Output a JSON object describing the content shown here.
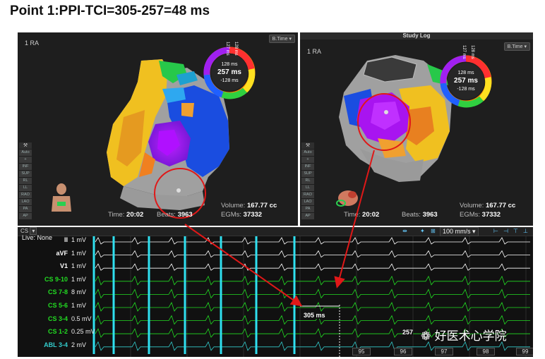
{
  "title": "Point 1:PPI-TCI=305-257=48 ms",
  "left_map": {
    "label": "1 RA",
    "dropdown": "B.Time",
    "ring_top": "128 ms",
    "ring_mid": "257 ms",
    "ring_bottom": "-128 ms",
    "ring_side_a": "127 ms",
    "ring_side_b": "128 ms",
    "time_label": "Time:",
    "time_value": "20:02",
    "beats_label": "Beats:",
    "beats_value": "3963",
    "volume_label": "Volume:",
    "volume_value": "167.77 cc",
    "egms_label": "EGMs:",
    "egms_value": "37332"
  },
  "right_map": {
    "header": "Study Log",
    "label": "1 RA",
    "dropdown": "B.Time",
    "ring_top": "128 ms",
    "ring_mid": "257 ms",
    "ring_bottom": "-128 ms",
    "ring_side_a": "127 ms",
    "ring_side_b": "128 ms",
    "time_label": "Time:",
    "time_value": "20:02",
    "beats_label": "Beats:",
    "beats_value": "3963",
    "volume_label": "Volume:",
    "volume_value": "167.77 cc",
    "egms_label": "EGMs:",
    "egms_value": "37332"
  },
  "toolbar": [
    "Auto",
    "+",
    "INF",
    "SUP",
    "RL",
    "LL",
    "RAO",
    "LAO",
    "PA",
    "AP"
  ],
  "egm": {
    "selector": "CS",
    "speed": "100 mm/s",
    "channels": [
      {
        "name": "II",
        "gain": "1 mV",
        "color": "#ffffff"
      },
      {
        "name": "aVF",
        "gain": "1 mV",
        "color": "#ffffff"
      },
      {
        "name": "V1",
        "gain": "1 mV",
        "color": "#ffffff"
      },
      {
        "name": "CS 9-10",
        "gain": "1 mV",
        "color": "#22dd22"
      },
      {
        "name": "CS 7-8",
        "gain": "8 mV",
        "color": "#22dd22"
      },
      {
        "name": "CS 5-6",
        "gain": "1 mV",
        "color": "#22dd22"
      },
      {
        "name": "CS 3-4",
        "gain": "0.5 mV",
        "color": "#22dd22"
      },
      {
        "name": "CS 1-2",
        "gain": "0.25 mV",
        "color": "#22dd22"
      },
      {
        "name": "ABL 3-4",
        "gain": "2 mV",
        "color": "#33cccc"
      }
    ],
    "live_label": "Live: None",
    "measure_ppi": "305 ms",
    "measure_tci": "257",
    "beat_numbers": [
      "95",
      "96",
      "97",
      "98",
      "99"
    ]
  },
  "watermark": "好医术心学院"
}
